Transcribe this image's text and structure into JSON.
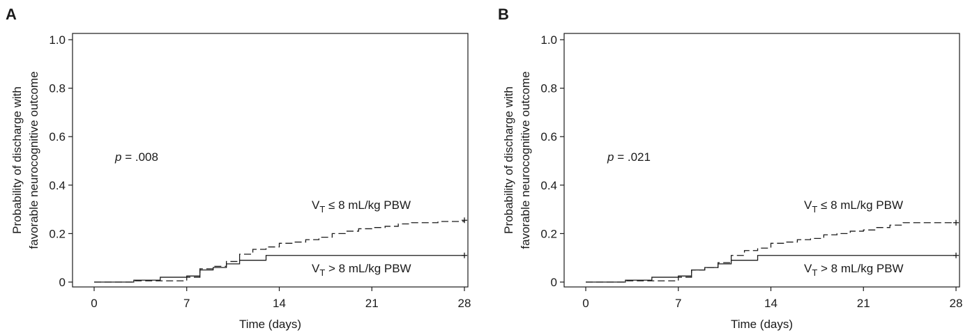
{
  "chart_data": [
    {
      "panel_label": "A",
      "type": "line",
      "subtype": "step",
      "xlabel": "Time (days)",
      "ylabel": [
        "Probability of discharge with",
        "favorable neurocognitive outcome"
      ],
      "xlim": [
        0,
        28
      ],
      "ylim": [
        0,
        1.0
      ],
      "x_ticks": [
        0,
        7,
        14,
        21,
        28
      ],
      "y_ticks": [
        0,
        0.2,
        0.4,
        0.6,
        0.8,
        1.0
      ],
      "y_tick_labels": [
        "0",
        "0.2",
        "0.4",
        "0.6",
        "0.8",
        "1.0"
      ],
      "grid": false,
      "annotation": {
        "prefix": "p",
        "value": "= .008"
      },
      "series": [
        {
          "label_main": "V",
          "label_sub": "T",
          "label_rest": " ≤ 8 mL/kg PBW",
          "style": "dashed",
          "censor_mark": true,
          "x": [
            0,
            3,
            7,
            8,
            9,
            10,
            11,
            12,
            13,
            14,
            15,
            16,
            17,
            18,
            19,
            20,
            21,
            22,
            23,
            24,
            26,
            28
          ],
          "y": [
            0,
            0.005,
            0.02,
            0.055,
            0.065,
            0.085,
            0.115,
            0.135,
            0.145,
            0.16,
            0.165,
            0.175,
            0.185,
            0.2,
            0.21,
            0.22,
            0.225,
            0.23,
            0.24,
            0.245,
            0.25,
            0.255
          ]
        },
        {
          "label_main": "V",
          "label_sub": "T",
          "label_rest": " > 8 mL/kg PBW",
          "style": "solid",
          "censor_mark": true,
          "x": [
            0,
            3,
            5,
            7,
            8,
            9,
            10,
            11,
            13,
            28
          ],
          "y": [
            0,
            0.008,
            0.02,
            0.025,
            0.05,
            0.06,
            0.075,
            0.09,
            0.11,
            0.11
          ]
        }
      ]
    },
    {
      "panel_label": "B",
      "type": "line",
      "subtype": "step",
      "xlabel": "Time (days)",
      "ylabel": [
        "Probability of discharge with",
        "favorable neurocognitive outcome"
      ],
      "xlim": [
        0,
        28
      ],
      "ylim": [
        0,
        1.0
      ],
      "x_ticks": [
        0,
        7,
        14,
        21,
        28
      ],
      "y_ticks": [
        0,
        0.2,
        0.4,
        0.6,
        0.8,
        1.0
      ],
      "y_tick_labels": [
        "0",
        "0.2",
        "0.4",
        "0.6",
        "0.8",
        "1.0"
      ],
      "grid": false,
      "annotation": {
        "prefix": "p",
        "value": "= .021"
      },
      "series": [
        {
          "label_main": "V",
          "label_sub": "T",
          "label_rest": " ≤ 8 mL/kg PBW",
          "style": "dashed",
          "censor_mark": true,
          "x": [
            0,
            3,
            7,
            8,
            9,
            10,
            11,
            12,
            13,
            14,
            15,
            16,
            17,
            18,
            19,
            20,
            21,
            22,
            23,
            24,
            28
          ],
          "y": [
            0,
            0.005,
            0.02,
            0.05,
            0.06,
            0.08,
            0.11,
            0.13,
            0.14,
            0.16,
            0.165,
            0.175,
            0.18,
            0.195,
            0.2,
            0.21,
            0.215,
            0.225,
            0.235,
            0.245,
            0.245
          ]
        },
        {
          "label_main": "V",
          "label_sub": "T",
          "label_rest": " > 8 mL/kg PBW",
          "style": "solid",
          "censor_mark": true,
          "x": [
            0,
            3,
            5,
            7,
            8,
            9,
            10,
            11,
            13,
            28
          ],
          "y": [
            0,
            0.008,
            0.02,
            0.025,
            0.05,
            0.06,
            0.075,
            0.09,
            0.11,
            0.11
          ]
        }
      ]
    }
  ]
}
